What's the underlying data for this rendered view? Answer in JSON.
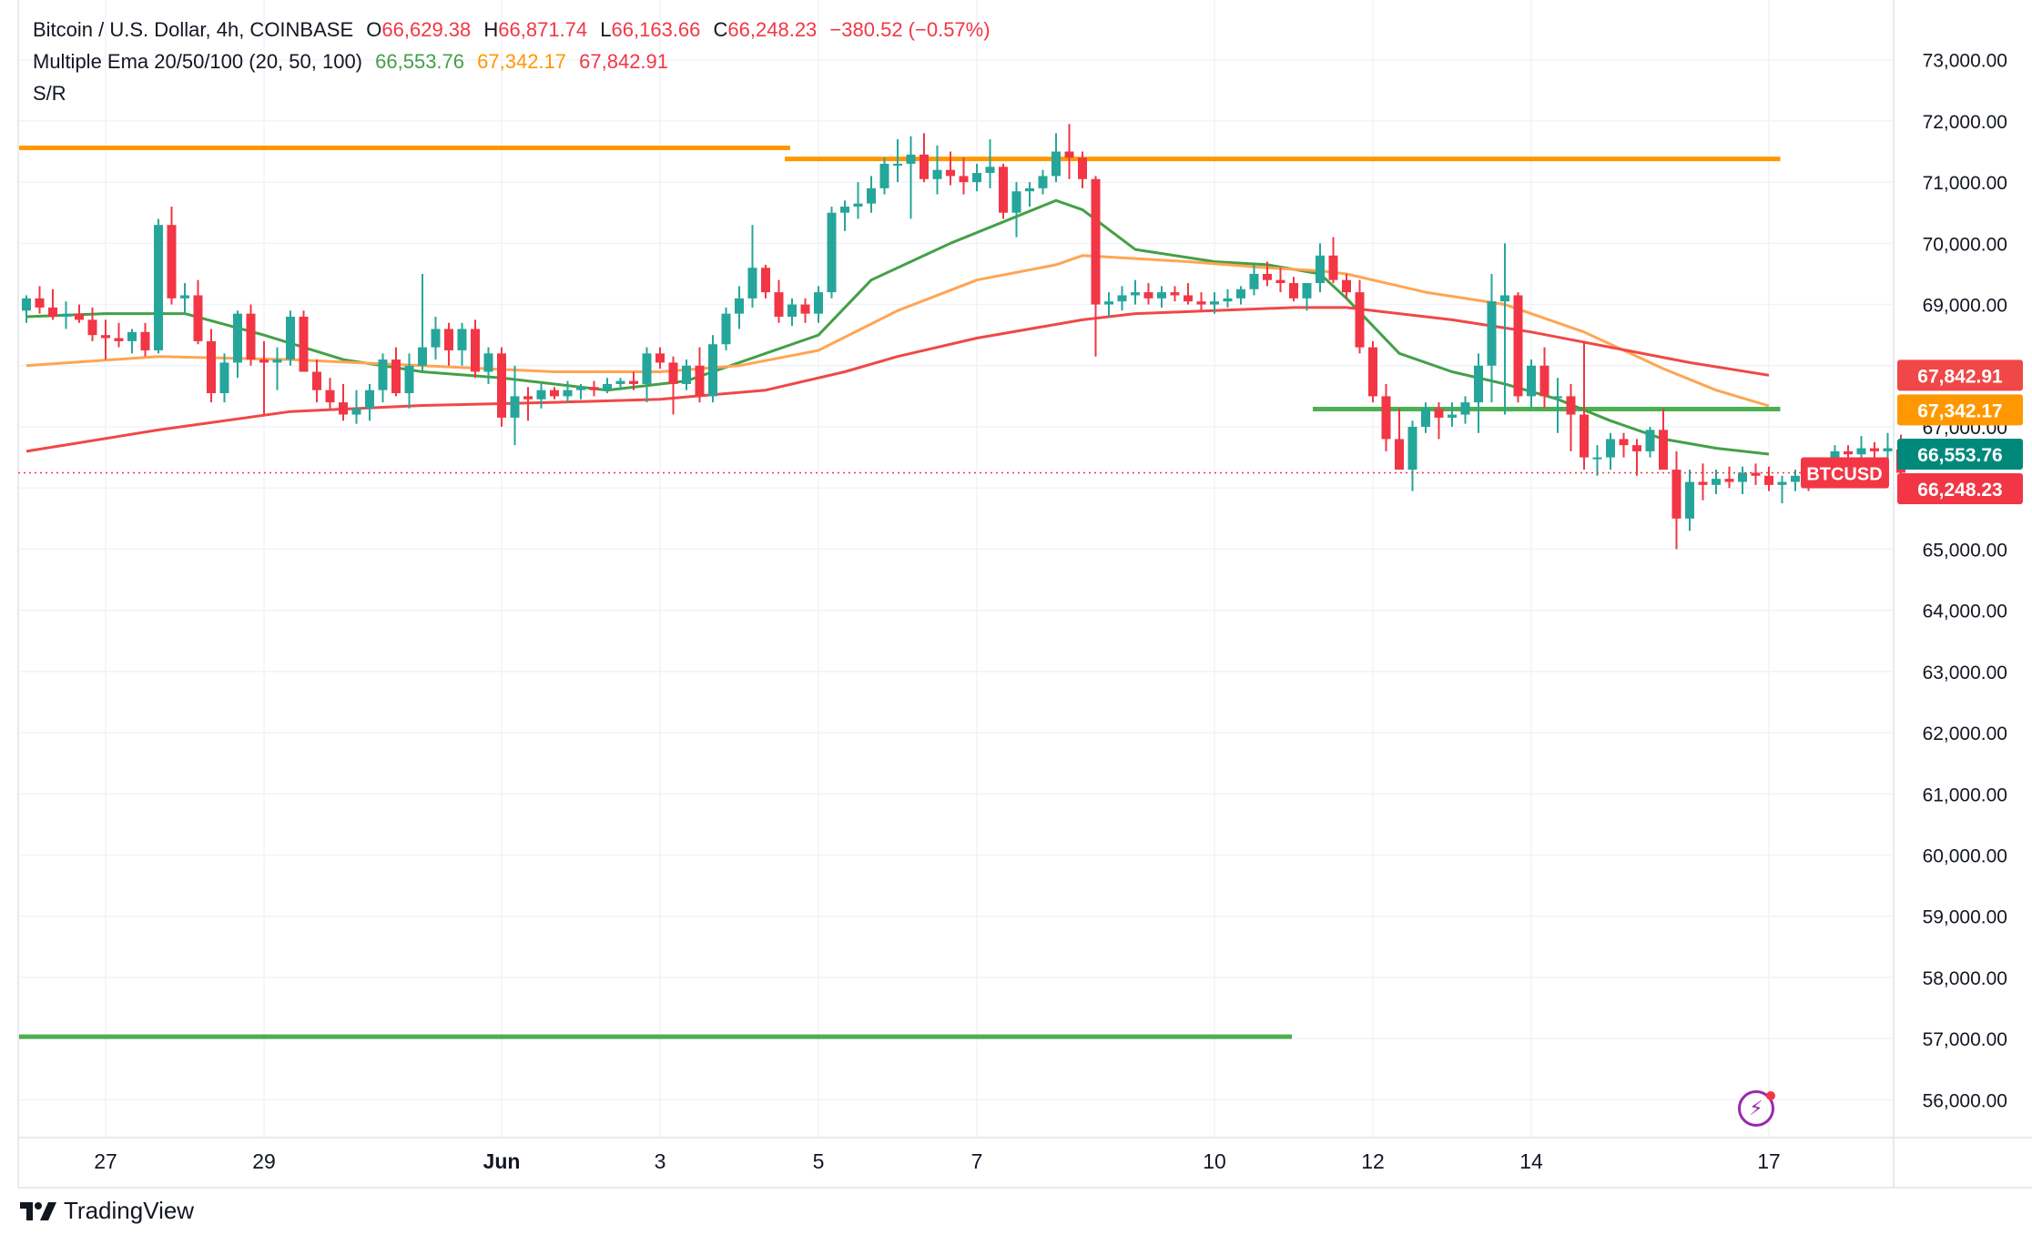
{
  "header": {
    "symbol": "Bitcoin / U.S. Dollar, 4h, COINBASE",
    "o_label": "O",
    "o_value": "66,629.38",
    "h_label": "H",
    "h_value": "66,871.74",
    "l_label": "L",
    "l_value": "66,163.66",
    "c_label": "C",
    "c_value": "66,248.23",
    "change": "−380.52 (−0.57%)",
    "ema_title": "Multiple Ema 20/50/100 (20, 50, 100)",
    "ema20_value": "66,553.76",
    "ema50_value": "67,342.17",
    "ema100_value": "67,842.91",
    "sr_title": "S/R"
  },
  "colors": {
    "up": "#26a69a",
    "down": "#f23645",
    "ema20": "#43a047",
    "ema50": "#ffa552",
    "ema100": "#f04848",
    "resistance": "#ff9800",
    "support": "#4caf50",
    "grid": "#f0f3fa",
    "text": "#131722"
  },
  "price_tags": {
    "ema100": "67,842.91",
    "ema50": "67,342.17",
    "ema20": "66,553.76",
    "symbol_label": "BTCUSD",
    "last": "66,248.23"
  },
  "branding": {
    "name": "TradingView",
    "flash_icon": "lightning-icon"
  },
  "chart_data": {
    "type": "candlestick",
    "title": "Bitcoin / U.S. Dollar, 4h, COINBASE",
    "y_axis": {
      "ylim": [
        55500,
        73650
      ],
      "ticks": [
        56000,
        57000,
        58000,
        59000,
        60000,
        61000,
        62000,
        63000,
        64000,
        65000,
        66000,
        67000,
        68000,
        69000,
        70000,
        71000,
        72000,
        73000
      ],
      "tick_labels": [
        "56,000.00",
        "57,000.00",
        "58,000.00",
        "59,000.00",
        "60,000.00",
        "61,000.00",
        "62,000.00",
        "63,000.00",
        "64,000.00",
        "65,000.00",
        "66,000.00",
        "67,000.00",
        "68,000.00",
        "69,000.00",
        "70,000.00",
        "71,000.00",
        "72,000.00",
        "73,000.00"
      ],
      "position": "right"
    },
    "x_axis": {
      "ticks": [
        {
          "label": "27",
          "index": 6
        },
        {
          "label": "29",
          "index": 18
        },
        {
          "label": "Jun",
          "index": 36
        },
        {
          "label": "3",
          "index": 48
        },
        {
          "label": "5",
          "index": 60
        },
        {
          "label": "7",
          "index": 72
        },
        {
          "label": "10",
          "index": 90
        },
        {
          "label": "12",
          "index": 102
        },
        {
          "label": "14",
          "index": 114
        },
        {
          "label": "17",
          "index": 132
        }
      ]
    },
    "grid": true,
    "candles": [
      [
        68900,
        69150,
        68700,
        69100
      ],
      [
        69100,
        69300,
        68850,
        68950
      ],
      [
        68950,
        69250,
        68750,
        68800
      ],
      [
        68800,
        69050,
        68600,
        68850
      ],
      [
        68850,
        69000,
        68700,
        68750
      ],
      [
        68750,
        68950,
        68400,
        68500
      ],
      [
        68500,
        68750,
        68100,
        68450
      ],
      [
        68450,
        68700,
        68300,
        68400
      ],
      [
        68400,
        68600,
        68200,
        68550
      ],
      [
        68550,
        68700,
        68150,
        68250
      ],
      [
        68250,
        70400,
        68200,
        70300
      ],
      [
        70300,
        70600,
        69000,
        69100
      ],
      [
        69100,
        69350,
        68850,
        69150
      ],
      [
        69150,
        69400,
        68350,
        68400
      ],
      [
        68400,
        68600,
        67400,
        67550
      ],
      [
        67550,
        68200,
        67400,
        68050
      ],
      [
        68050,
        68900,
        67800,
        68850
      ],
      [
        68850,
        69000,
        68000,
        68100
      ],
      [
        68100,
        68400,
        67200,
        68050
      ],
      [
        68050,
        68300,
        67600,
        68100
      ],
      [
        68100,
        68900,
        68000,
        68800
      ],
      [
        68800,
        68900,
        67900,
        67900
      ],
      [
        67900,
        68100,
        67400,
        67600
      ],
      [
        67600,
        67800,
        67300,
        67400
      ],
      [
        67400,
        67700,
        67100,
        67200
      ],
      [
        67200,
        67600,
        67050,
        67300
      ],
      [
        67300,
        67700,
        67100,
        67600
      ],
      [
        67600,
        68200,
        67400,
        68100
      ],
      [
        68100,
        68300,
        67500,
        67550
      ],
      [
        67550,
        68200,
        67300,
        68000
      ],
      [
        68000,
        69500,
        67900,
        68300
      ],
      [
        68300,
        68800,
        68100,
        68600
      ],
      [
        68600,
        68700,
        68000,
        68250
      ],
      [
        68250,
        68700,
        68000,
        68600
      ],
      [
        68600,
        68750,
        67800,
        67900
      ],
      [
        67900,
        68300,
        67700,
        68200
      ],
      [
        68200,
        68300,
        67000,
        67150
      ],
      [
        67150,
        68000,
        66700,
        67500
      ],
      [
        67500,
        67650,
        67100,
        67450
      ],
      [
        67450,
        67700,
        67300,
        67600
      ],
      [
        67600,
        67650,
        67450,
        67500
      ],
      [
        67500,
        67750,
        67400,
        67600
      ],
      [
        67600,
        67700,
        67450,
        67650
      ],
      [
        67650,
        67750,
        67500,
        67600
      ],
      [
        67600,
        67800,
        67550,
        67700
      ],
      [
        67700,
        67800,
        67600,
        67750
      ],
      [
        67750,
        67900,
        67600,
        67700
      ],
      [
        67700,
        68300,
        67400,
        68200
      ],
      [
        68200,
        68300,
        67950,
        68050
      ],
      [
        68050,
        68150,
        67200,
        67700
      ],
      [
        67700,
        68100,
        67600,
        68000
      ],
      [
        68000,
        68300,
        67400,
        67500
      ],
      [
        67500,
        68500,
        67400,
        68350
      ],
      [
        68350,
        68950,
        68250,
        68850
      ],
      [
        68850,
        69300,
        68600,
        69100
      ],
      [
        69100,
        70300,
        68950,
        69600
      ],
      [
        69600,
        69650,
        69100,
        69200
      ],
      [
        69200,
        69400,
        68700,
        68800
      ],
      [
        68800,
        69100,
        68650,
        69000
      ],
      [
        69000,
        69100,
        68700,
        68850
      ],
      [
        68850,
        69300,
        68700,
        69200
      ],
      [
        69200,
        70600,
        69100,
        70500
      ],
      [
        70500,
        70700,
        70200,
        70600
      ],
      [
        70600,
        71000,
        70400,
        70650
      ],
      [
        70650,
        71100,
        70500,
        70900
      ],
      [
        70900,
        71400,
        70800,
        71300
      ],
      [
        71300,
        71700,
        71000,
        71300
      ],
      [
        71300,
        71750,
        70400,
        71450
      ],
      [
        71450,
        71800,
        71000,
        71050
      ],
      [
        71050,
        71600,
        70800,
        71200
      ],
      [
        71200,
        71500,
        70950,
        71100
      ],
      [
        71100,
        71400,
        70800,
        71000
      ],
      [
        71000,
        71300,
        70850,
        71150
      ],
      [
        71150,
        71700,
        70900,
        71250
      ],
      [
        71250,
        71300,
        70400,
        70500
      ],
      [
        70500,
        71000,
        70100,
        70850
      ],
      [
        70850,
        71000,
        70600,
        70900
      ],
      [
        70900,
        71200,
        70800,
        71100
      ],
      [
        71100,
        71800,
        71000,
        71500
      ],
      [
        71500,
        71950,
        71050,
        71400
      ],
      [
        71400,
        71500,
        70900,
        71050
      ],
      [
        71050,
        71100,
        68150,
        69000
      ],
      [
        69000,
        69200,
        68800,
        69050
      ],
      [
        69050,
        69300,
        68900,
        69150
      ],
      [
        69150,
        69400,
        69000,
        69200
      ],
      [
        69200,
        69350,
        69000,
        69100
      ],
      [
        69100,
        69300,
        68950,
        69200
      ],
      [
        69200,
        69300,
        69050,
        69150
      ],
      [
        69150,
        69350,
        69000,
        69050
      ],
      [
        69050,
        69200,
        68900,
        69000
      ],
      [
        69000,
        69200,
        68850,
        69050
      ],
      [
        69050,
        69250,
        68950,
        69100
      ],
      [
        69100,
        69300,
        69000,
        69250
      ],
      [
        69250,
        69650,
        69150,
        69500
      ],
      [
        69500,
        69700,
        69300,
        69400
      ],
      [
        69400,
        69600,
        69200,
        69350
      ],
      [
        69350,
        69450,
        69050,
        69100
      ],
      [
        69100,
        69300,
        68900,
        69350
      ],
      [
        69350,
        70000,
        69200,
        69800
      ],
      [
        69800,
        70100,
        69350,
        69400
      ],
      [
        69400,
        69500,
        69100,
        69200
      ],
      [
        69200,
        69400,
        68200,
        68300
      ],
      [
        68300,
        68400,
        67400,
        67500
      ],
      [
        67500,
        67700,
        66600,
        66800
      ],
      [
        66800,
        67300,
        66300,
        66300
      ],
      [
        66300,
        67100,
        65950,
        67000
      ],
      [
        67000,
        67400,
        66900,
        67300
      ],
      [
        67300,
        67400,
        66800,
        67150
      ],
      [
        67150,
        67400,
        67000,
        67200
      ],
      [
        67200,
        67500,
        67050,
        67400
      ],
      [
        67400,
        68200,
        66900,
        68000
      ],
      [
        68000,
        69500,
        67400,
        69050
      ],
      [
        69050,
        70000,
        67200,
        69150
      ],
      [
        69150,
        69200,
        67400,
        67500
      ],
      [
        67500,
        68100,
        67300,
        68000
      ],
      [
        68000,
        68300,
        67300,
        67500
      ],
      [
        67500,
        67800,
        66900,
        67500
      ],
      [
        67500,
        67700,
        66600,
        67200
      ],
      [
        67200,
        68400,
        66300,
        66500
      ],
      [
        66500,
        66700,
        66200,
        66500
      ],
      [
        66500,
        66900,
        66300,
        66800
      ],
      [
        66800,
        66900,
        66500,
        66700
      ],
      [
        66700,
        66800,
        66200,
        66600
      ],
      [
        66600,
        67000,
        66500,
        66950
      ],
      [
        66950,
        67300,
        66400,
        66300
      ],
      [
        66300,
        66600,
        65000,
        65500
      ],
      [
        65500,
        66300,
        65300,
        66100
      ],
      [
        66100,
        66400,
        65800,
        66050
      ],
      [
        66050,
        66300,
        65900,
        66150
      ],
      [
        66150,
        66350,
        66000,
        66100
      ],
      [
        66100,
        66350,
        65900,
        66250
      ],
      [
        66250,
        66400,
        66050,
        66200
      ],
      [
        66200,
        66350,
        65950,
        66050
      ],
      [
        66050,
        66200,
        65750,
        66100
      ],
      [
        66100,
        66300,
        65950,
        66200
      ],
      [
        66200,
        66350,
        65950,
        66050
      ],
      [
        66050,
        66500,
        66000,
        66300
      ],
      [
        66300,
        66700,
        66200,
        66600
      ],
      [
        66600,
        66700,
        66300,
        66550
      ],
      [
        66550,
        66850,
        66400,
        66650
      ],
      [
        66650,
        66750,
        66350,
        66600
      ],
      [
        66600,
        66900,
        66450,
        66650
      ],
      [
        66629.38,
        66871.74,
        66163.66,
        66248.23
      ]
    ],
    "series": [
      {
        "name": "EMA 20",
        "color": "#43a047",
        "last": 66553.76,
        "points": [
          [
            0,
            68800
          ],
          [
            6,
            68850
          ],
          [
            12,
            68850
          ],
          [
            18,
            68500
          ],
          [
            24,
            68100
          ],
          [
            30,
            67900
          ],
          [
            36,
            67800
          ],
          [
            44,
            67600
          ],
          [
            50,
            67750
          ],
          [
            56,
            68200
          ],
          [
            60,
            68500
          ],
          [
            64,
            69400
          ],
          [
            70,
            70000
          ],
          [
            74,
            70350
          ],
          [
            78,
            70700
          ],
          [
            80,
            70550
          ],
          [
            84,
            69900
          ],
          [
            90,
            69700
          ],
          [
            94,
            69650
          ],
          [
            98,
            69500
          ],
          [
            100,
            69100
          ],
          [
            104,
            68200
          ],
          [
            108,
            67900
          ],
          [
            112,
            67700
          ],
          [
            116,
            67450
          ],
          [
            120,
            67100
          ],
          [
            124,
            66800
          ],
          [
            128,
            66650
          ],
          [
            132,
            66553.76
          ]
        ]
      },
      {
        "name": "EMA 50",
        "color": "#ffa552",
        "last": 67342.17,
        "points": [
          [
            0,
            68000
          ],
          [
            10,
            68150
          ],
          [
            20,
            68100
          ],
          [
            30,
            68000
          ],
          [
            40,
            67900
          ],
          [
            48,
            67900
          ],
          [
            54,
            68000
          ],
          [
            60,
            68250
          ],
          [
            66,
            68900
          ],
          [
            72,
            69400
          ],
          [
            78,
            69650
          ],
          [
            80,
            69800
          ],
          [
            88,
            69700
          ],
          [
            94,
            69600
          ],
          [
            98,
            69550
          ],
          [
            100,
            69500
          ],
          [
            106,
            69200
          ],
          [
            112,
            69000
          ],
          [
            118,
            68550
          ],
          [
            124,
            67950
          ],
          [
            128,
            67600
          ],
          [
            132,
            67342.17
          ]
        ]
      },
      {
        "name": "EMA 100",
        "color": "#f04848",
        "last": 67842.91,
        "points": [
          [
            0,
            66600
          ],
          [
            10,
            66950
          ],
          [
            20,
            67250
          ],
          [
            30,
            67350
          ],
          [
            40,
            67400
          ],
          [
            48,
            67450
          ],
          [
            56,
            67600
          ],
          [
            62,
            67900
          ],
          [
            66,
            68150
          ],
          [
            72,
            68450
          ],
          [
            80,
            68750
          ],
          [
            84,
            68850
          ],
          [
            90,
            68900
          ],
          [
            96,
            68950
          ],
          [
            100,
            68950
          ],
          [
            108,
            68750
          ],
          [
            114,
            68550
          ],
          [
            120,
            68300
          ],
          [
            126,
            68050
          ],
          [
            132,
            67842.91
          ]
        ]
      }
    ],
    "support_resistance": [
      {
        "kind": "resistance",
        "price": 71560,
        "from_index": 0,
        "to_index": 58
      },
      {
        "kind": "resistance",
        "price": 71380,
        "from_index": 58,
        "to_index": 133
      },
      {
        "kind": "support",
        "price": 67290,
        "from_index": 98,
        "to_index": 133
      },
      {
        "kind": "support",
        "price": 57030,
        "from_index": 0,
        "to_index": 96
      }
    ],
    "last_price": 66248.23
  }
}
